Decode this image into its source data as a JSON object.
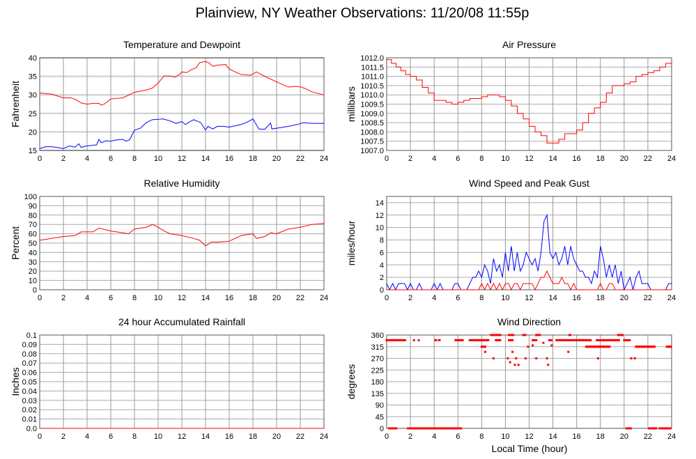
{
  "title": "Plainview, NY Weather Observations: 11/20/08 11:55p",
  "xaxis_label": "Local Time (hour)",
  "chart_data": [
    {
      "type": "line",
      "title": "Temperature and Dewpoint",
      "ylabel": "Fahrenheit",
      "xlim": [
        0,
        24
      ],
      "xticks": [
        0,
        2,
        4,
        6,
        8,
        10,
        12,
        14,
        16,
        18,
        20,
        22,
        24
      ],
      "ylim": [
        15,
        40
      ],
      "yticks": [
        15,
        20,
        25,
        30,
        35,
        40
      ],
      "ytick_labels": [
        "15",
        "20",
        "25",
        "30",
        "35",
        "40"
      ],
      "grid": true,
      "series": [
        {
          "name": "Temperature",
          "color": "#ff0000",
          "x": [
            0,
            1,
            2,
            2.6,
            3,
            3.5,
            4,
            4.5,
            5,
            5.2,
            5.5,
            6,
            7,
            7.5,
            8,
            9,
            9.5,
            10,
            10.5,
            11,
            11.4,
            11.8,
            12,
            12.4,
            12.8,
            13.2,
            13.5,
            14,
            14.3,
            14.6,
            15,
            15.7,
            16,
            16.5,
            17,
            17.8,
            18.3,
            19,
            20,
            21,
            21.5,
            22,
            22.5,
            23,
            24
          ],
          "y": [
            30.5,
            30.2,
            29.2,
            29.2,
            28.8,
            27.8,
            27.5,
            27.7,
            27.7,
            27.2,
            27.6,
            28.9,
            29.2,
            29.9,
            30.7,
            31.3,
            31.8,
            33.2,
            35.1,
            35.1,
            34.8,
            35.5,
            36.2,
            36,
            36.8,
            37.3,
            38.7,
            39,
            38.6,
            37.7,
            38,
            38.2,
            37,
            36.2,
            35.5,
            35.3,
            36.2,
            35,
            33.5,
            32.1,
            32.3,
            32.2,
            31.6,
            30.8,
            30
          ]
        },
        {
          "name": "Dewpoint",
          "color": "#0000ff",
          "x": [
            0,
            0.5,
            1,
            1.5,
            2,
            2.5,
            3,
            3.3,
            3.5,
            3.8,
            4,
            4.5,
            4.8,
            5,
            5.2,
            5.6,
            6,
            6.4,
            7,
            7.3,
            7.6,
            8,
            8.5,
            9,
            9.5,
            10,
            10.4,
            11,
            11.5,
            12,
            12.3,
            12.6,
            13,
            13.3,
            13.6,
            14,
            14.2,
            14.6,
            15,
            15.5,
            16,
            17,
            17.5,
            18,
            18.5,
            19,
            19.5,
            19.6,
            20,
            21,
            22,
            22.2,
            23,
            24
          ],
          "y": [
            15.5,
            16,
            16,
            15.8,
            15.5,
            16.2,
            15.9,
            16.8,
            15.8,
            16.1,
            16.2,
            16.4,
            16.5,
            18,
            17.1,
            17.6,
            17.5,
            17.8,
            18,
            17.5,
            17.9,
            20.5,
            21,
            22.5,
            23.3,
            23.4,
            23.5,
            23,
            22.3,
            22.8,
            22,
            22.6,
            23.3,
            22.9,
            22.5,
            20.5,
            21.5,
            20.8,
            21.5,
            21.5,
            21.3,
            22,
            22.6,
            23.5,
            20.8,
            20.7,
            22.4,
            20.8,
            21,
            21.5,
            22.2,
            22.5,
            22.3,
            22.3
          ]
        }
      ]
    },
    {
      "type": "line",
      "title": "Air Pressure",
      "ylabel": "millibars",
      "xlim": [
        0,
        24
      ],
      "xticks": [
        0,
        2,
        4,
        6,
        8,
        10,
        12,
        14,
        16,
        18,
        20,
        22,
        24
      ],
      "ylim": [
        1007,
        1012
      ],
      "yticks": [
        1007,
        1007.5,
        1008,
        1008.5,
        1009,
        1009.5,
        1010,
        1010.5,
        1011,
        1011.5,
        1012
      ],
      "ytick_labels": [
        "1007.0",
        "1007.5",
        "1008.0",
        "1008.5",
        "1009.0",
        "1009.5",
        "1010.0",
        "1010.5",
        "1011.0",
        "1011.5",
        "1012.0"
      ],
      "grid": true,
      "step": true,
      "series": [
        {
          "name": "Pressure",
          "color": "#ff0000",
          "x": [
            0,
            0.4,
            0.8,
            1.2,
            1.6,
            2,
            2.5,
            3,
            3.5,
            4,
            5,
            5.5,
            6,
            6.5,
            7,
            7.5,
            8,
            8.5,
            9,
            9.5,
            10,
            10.5,
            11,
            11.5,
            12,
            12.5,
            13,
            13.5,
            14.5,
            15,
            16,
            16.5,
            17,
            17.5,
            18,
            18.5,
            19,
            20,
            20.5,
            21,
            21.5,
            22,
            22.5,
            23,
            23.5,
            24
          ],
          "y": [
            1011.9,
            1011.7,
            1011.5,
            1011.3,
            1011.1,
            1011,
            1010.8,
            1010.4,
            1010.1,
            1009.7,
            1009.6,
            1009.5,
            1009.6,
            1009.7,
            1009.8,
            1009.8,
            1009.9,
            1010,
            1010,
            1009.9,
            1009.7,
            1009.4,
            1009,
            1008.7,
            1008.3,
            1008,
            1007.8,
            1007.4,
            1007.6,
            1007.9,
            1008.1,
            1008.5,
            1009,
            1009.3,
            1009.6,
            1010.1,
            1010.5,
            1010.6,
            1010.7,
            1011,
            1011.1,
            1011.2,
            1011.3,
            1011.5,
            1011.7,
            1011.5
          ]
        }
      ]
    },
    {
      "type": "line",
      "title": "Relative Humidity",
      "ylabel": "Percent",
      "xlim": [
        0,
        24
      ],
      "xticks": [
        0,
        2,
        4,
        6,
        8,
        10,
        12,
        14,
        16,
        18,
        20,
        22,
        24
      ],
      "ylim": [
        0,
        100
      ],
      "yticks": [
        0,
        10,
        20,
        30,
        40,
        50,
        60,
        70,
        80,
        90,
        100
      ],
      "ytick_labels": [
        "0",
        "10",
        "20",
        "30",
        "40",
        "50",
        "60",
        "70",
        "80",
        "90",
        "100"
      ],
      "grid": true,
      "series": [
        {
          "name": "Relative Humidity",
          "color": "#ff0000",
          "x": [
            0,
            1,
            2,
            3,
            3.5,
            4,
            4.5,
            5,
            6,
            7,
            7.5,
            8,
            9,
            9.5,
            10,
            10.5,
            11,
            12,
            13,
            13.5,
            14,
            14.5,
            15,
            16,
            17,
            18,
            18.3,
            19,
            19.5,
            20,
            21,
            22,
            23,
            24
          ],
          "y": [
            53,
            55,
            57,
            58,
            62,
            62,
            62,
            66,
            63,
            61,
            60,
            65,
            67,
            70,
            67,
            63,
            60,
            58,
            55,
            53,
            47,
            51,
            51,
            52,
            58,
            60,
            55,
            57,
            61,
            60,
            65,
            67,
            70,
            71
          ]
        }
      ]
    },
    {
      "type": "line",
      "title": "Wind Speed and Peak Gust",
      "ylabel": "miles/hour",
      "xlim": [
        0,
        24
      ],
      "xticks": [
        0,
        2,
        4,
        6,
        8,
        10,
        12,
        14,
        16,
        18,
        20,
        22,
        24
      ],
      "ylim": [
        0,
        15
      ],
      "yticks": [
        0,
        2,
        4,
        6,
        8,
        10,
        12,
        14
      ],
      "ytick_labels": [
        "0",
        "2",
        "4",
        "6",
        "8",
        "10",
        "12",
        "14"
      ],
      "grid": true,
      "x_step": 0.25,
      "series": [
        {
          "name": "Wind Speed",
          "color": "#0000ff",
          "values": [
            1,
            0,
            1,
            0,
            1,
            1,
            1,
            0,
            1,
            0,
            0,
            1,
            0,
            0,
            0,
            0,
            1,
            0,
            1,
            0,
            0,
            0,
            0,
            1,
            1,
            0,
            0,
            0,
            1,
            2,
            2,
            3,
            2,
            4,
            3,
            1,
            5,
            3,
            4,
            2,
            6,
            3,
            7,
            3,
            6,
            3,
            4,
            6,
            5,
            4,
            5,
            3,
            6,
            11,
            12,
            6,
            5,
            6,
            4,
            5,
            7,
            4,
            7,
            5,
            4,
            3,
            3,
            2,
            2,
            1,
            3,
            2,
            7,
            5,
            2,
            4,
            2,
            4,
            1,
            3,
            0,
            1,
            2,
            0,
            2,
            3,
            1,
            1,
            1,
            0,
            0,
            0,
            0,
            0,
            0,
            1,
            1
          ]
        },
        {
          "name": "Peak Gust",
          "color": "#ff0000",
          "values": [
            0,
            0,
            0,
            0,
            0,
            0,
            0,
            0,
            0,
            0,
            0,
            0,
            0,
            0,
            0,
            0,
            0,
            0,
            0,
            0,
            0,
            0,
            0,
            0,
            0,
            0,
            0,
            0,
            0,
            0,
            0,
            0,
            1,
            0,
            1,
            0,
            1,
            0,
            1,
            0,
            1,
            1,
            0,
            1,
            1,
            0,
            1,
            1,
            1,
            1,
            0,
            1,
            2,
            2,
            3,
            2,
            1,
            1,
            1,
            2,
            1,
            1,
            0,
            1,
            0,
            0,
            0,
            0,
            0,
            0,
            0,
            0,
            1,
            0,
            0,
            1,
            1,
            0,
            0,
            0,
            0,
            0,
            0,
            0,
            0,
            0,
            0,
            0,
            0,
            0,
            0,
            0,
            0,
            0,
            0,
            0,
            0
          ]
        }
      ]
    },
    {
      "type": "line",
      "title": "24 hour Accumulated Rainfall",
      "ylabel": "Inches",
      "xlim": [
        0,
        24
      ],
      "xticks": [
        0,
        2,
        4,
        6,
        8,
        10,
        12,
        14,
        16,
        18,
        20,
        22,
        24
      ],
      "ylim": [
        0,
        0.1
      ],
      "yticks": [
        0,
        0.01,
        0.02,
        0.03,
        0.04,
        0.05,
        0.06,
        0.07,
        0.08,
        0.09,
        0.1
      ],
      "ytick_labels": [
        "0.0",
        "0.01",
        "0.02",
        "0.03",
        "0.04",
        "0.05",
        "0.06",
        "0.07",
        "0.08",
        "0.09",
        "0.1"
      ],
      "grid": true,
      "series": [
        {
          "name": "Rainfall",
          "color": "#ff0000",
          "x": [
            0,
            24
          ],
          "y": [
            0,
            0
          ]
        }
      ]
    },
    {
      "type": "scatter",
      "title": "Wind Direction",
      "ylabel": "degrees",
      "xlim": [
        0,
        24
      ],
      "xticks": [
        0,
        2,
        4,
        6,
        8,
        10,
        12,
        14,
        16,
        18,
        20,
        22,
        24
      ],
      "ylim": [
        0,
        360
      ],
      "yticks": [
        0,
        45,
        90,
        135,
        180,
        225,
        270,
        315,
        360
      ],
      "ytick_labels": [
        "0",
        "45",
        "90",
        "135",
        "180",
        "225",
        "270",
        "315",
        "360"
      ],
      "grid": true,
      "color": "#ff0000",
      "runs": [
        [
          0.2,
          0.8,
          0
        ],
        [
          1.8,
          3.7,
          0
        ],
        [
          3.8,
          6.3,
          0
        ],
        [
          20.2,
          20.6,
          0
        ],
        [
          22.1,
          22.7,
          0
        ],
        [
          23,
          23.9,
          0
        ],
        [
          0,
          1.6,
          340
        ],
        [
          4.1,
          4.2,
          340
        ],
        [
          4.4,
          4.5,
          340
        ],
        [
          5.8,
          6.4,
          340
        ],
        [
          7,
          8.6,
          340
        ],
        [
          9.2,
          9.6,
          340
        ],
        [
          10.3,
          10.6,
          340
        ],
        [
          12.3,
          12.6,
          340
        ],
        [
          13.7,
          13.9,
          340
        ],
        [
          14.3,
          17.2,
          340
        ],
        [
          17.7,
          19.6,
          340
        ],
        [
          20,
          20.5,
          340
        ],
        [
          8,
          8.3,
          315
        ],
        [
          16.8,
          18.8,
          315
        ],
        [
          21,
          22.6,
          315
        ],
        [
          23.6,
          24,
          315
        ],
        [
          8.8,
          9.6,
          360
        ],
        [
          10.3,
          10.7,
          360
        ],
        [
          11.5,
          11.7,
          360
        ],
        [
          12.6,
          12.9,
          360
        ],
        [
          15.4,
          15.5,
          360
        ],
        [
          19.5,
          19.9,
          360
        ]
      ],
      "points": [
        [
          2.3,
          340
        ],
        [
          2.7,
          340
        ],
        [
          8.3,
          295
        ],
        [
          9,
          270
        ],
        [
          10.2,
          270
        ],
        [
          10.4,
          255
        ],
        [
          10.6,
          295
        ],
        [
          10.8,
          245
        ],
        [
          10.9,
          270
        ],
        [
          11.1,
          245
        ],
        [
          11.7,
          270
        ],
        [
          11.9,
          315
        ],
        [
          12.3,
          320
        ],
        [
          12.6,
          270
        ],
        [
          13.2,
          330
        ],
        [
          13.5,
          270
        ],
        [
          13.6,
          245
        ],
        [
          13.9,
          320
        ],
        [
          15.3,
          295
        ],
        [
          17.8,
          270
        ],
        [
          20.6,
          270
        ],
        [
          20.9,
          270
        ]
      ]
    }
  ]
}
